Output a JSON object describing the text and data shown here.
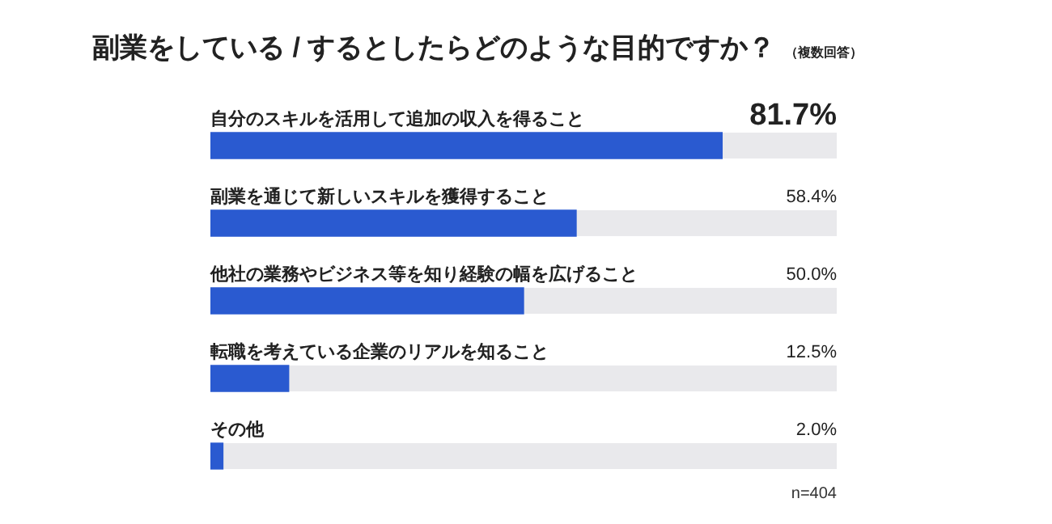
{
  "chart_data": {
    "type": "bar",
    "orientation": "horizontal",
    "title": "副業をしている / するとしたらどのような目的ですか？",
    "subtitle": "（複数回答）",
    "categories": [
      "自分のスキルを活用して追加の収入を得ること",
      "副業を通じて新しいスキルを獲得すること",
      "他社の業務やビジネス等を知り経験の幅を広げること",
      "転職を考えている企業のリアルを知ること",
      "その他"
    ],
    "values": [
      81.7,
      58.4,
      50.0,
      12.5,
      2.0
    ],
    "value_labels": [
      "81.7%",
      "58.4%",
      "50.0%",
      "12.5%",
      "2.0%"
    ],
    "color": "#2a5ad0",
    "xlim": [
      0,
      100
    ],
    "tick_labels": false,
    "legend": false,
    "annotations": [
      "n=404"
    ]
  }
}
